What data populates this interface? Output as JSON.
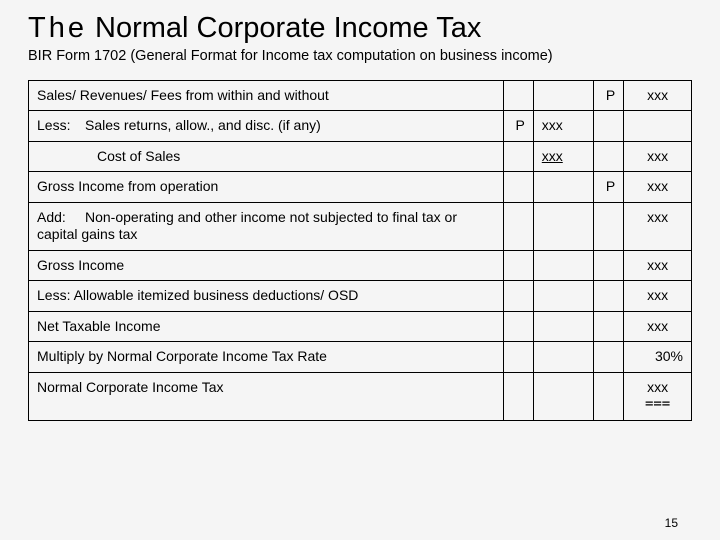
{
  "header": {
    "title_the": "The",
    "title_rest": " Normal Corporate Income Tax",
    "subtitle": "BIR Form 1702 (General Format for Income tax computation on business income)"
  },
  "rows": [
    {
      "desc_prefix": "",
      "desc": "Sales/ Revenues/ Fees from within and without",
      "m1": "",
      "m2": "",
      "a1": "P",
      "a2": "xxx"
    },
    {
      "desc_prefix": "Less:",
      "desc": "Sales returns, allow., and disc. (if  any)",
      "m1": "P",
      "m2": "xxx",
      "a1": "",
      "a2": ""
    },
    {
      "desc_prefix": "",
      "indent": "indent2",
      "desc": "Cost of Sales",
      "m1": "",
      "m2": "xxx",
      "a1": "",
      "a2": "xxx",
      "m2_underline": true
    },
    {
      "desc_prefix": "",
      "desc": "Gross Income from operation",
      "m1": "",
      "m2": "",
      "a1": "P",
      "a2": "xxx"
    },
    {
      "desc_prefix": "Add:",
      "desc": "Non-operating and other income not subjected to final  tax or capital gains tax",
      "m1": "",
      "m2": "",
      "a1": "",
      "a2": "xxx"
    },
    {
      "desc_prefix": "",
      "desc": "Gross Income",
      "m1": "",
      "m2": "",
      "a1": "",
      "a2": "xxx"
    },
    {
      "desc_prefix": "",
      "desc": "Less:   Allowable itemized business deductions/ OSD",
      "m1": "",
      "m2": "",
      "a1": "",
      "a2": "xxx"
    },
    {
      "desc_prefix": "",
      "desc": "Net Taxable Income",
      "m1": "",
      "m2": "",
      "a1": "",
      "a2": "xxx"
    },
    {
      "desc_prefix": "",
      "desc": "Multiply by Normal Corporate Income Tax Rate",
      "m1": "",
      "m2": "",
      "a1": "",
      "a2": "30%",
      "a2_right": true
    },
    {
      "desc_prefix": "",
      "desc": "Normal Corporate Income Tax",
      "m1": "",
      "m2": "",
      "a1": "",
      "a2": "xxx",
      "dbl": "==="
    }
  ],
  "page_number": "15",
  "colors": {
    "bg": "#f5f5f5",
    "border": "#000000",
    "text": "#000000"
  }
}
